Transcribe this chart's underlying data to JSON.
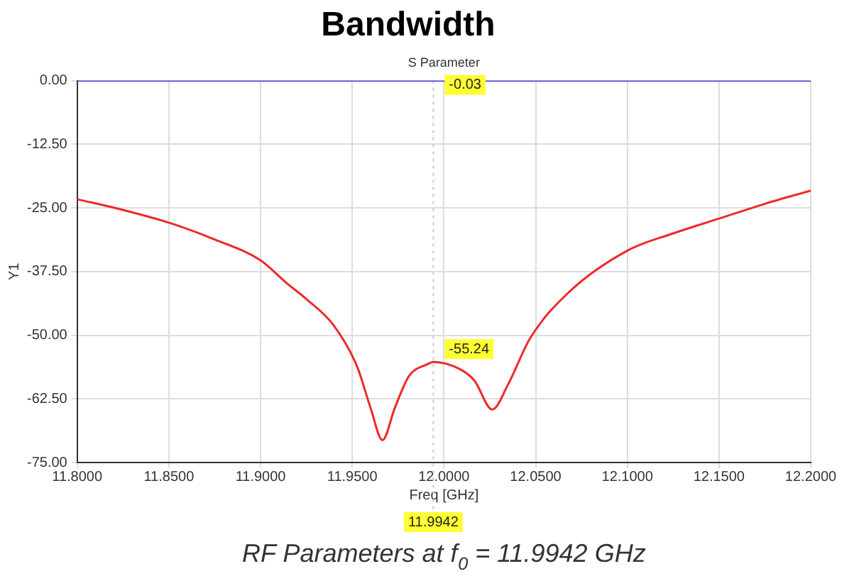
{
  "chart_data": {
    "type": "line",
    "title": "Bandwidth",
    "xlabel": "Freq [GHz]",
    "ylabel": "Y1",
    "annotations": [
      "S Parameter",
      "RF Parameters at f$_{0}$ = 11.9942 GHz",
      {
        "text": "-0.03",
        "x": 11.9942,
        "y": -0.03
      },
      {
        "text": "-55.24",
        "x": 11.9942,
        "y": -55.24
      }
    ],
    "series": [
      {
        "color": "#ee2a2a",
        "x": [
          11.8,
          11.825,
          11.85,
          11.875,
          11.9,
          11.914,
          11.925,
          11.9395,
          11.9526,
          11.96,
          11.9665,
          11.9732,
          11.981,
          11.991,
          11.9942,
          12.0089,
          12.0166,
          12.0264,
          12.0348,
          12.047,
          12.068,
          12.1,
          12.125,
          12.15,
          12.175,
          12.2
        ],
        "values": [
          -23.3,
          -25.4,
          -27.9,
          -31.2,
          -35.3,
          -39.7,
          -42.9,
          -47.9,
          -56.1,
          -64.3,
          -70.6,
          -64.3,
          -58.0,
          -55.7,
          -55.24,
          -56.7,
          -58.9,
          -64.6,
          -59.8,
          -50.6,
          -41.6,
          -33.4,
          -30.0,
          -27.1,
          -24.2,
          -21.6
        ]
      },
      {
        "color": "#5050e0",
        "x": [
          11.8,
          12.2
        ],
        "values": [
          -0.03,
          -0.03
        ]
      }
    ],
    "xlim": [
      11.8,
      12.2
    ],
    "xticks": [
      {
        "value": 11.8,
        "label": "11.8000"
      },
      {
        "value": 11.85,
        "label": "11.8500"
      },
      {
        "value": 11.9,
        "label": "11.9000"
      },
      {
        "value": 11.95,
        "label": "11.9500"
      },
      {
        "value": 12.0,
        "label": "12.0000"
      },
      {
        "value": 12.05,
        "label": "12.0500"
      },
      {
        "value": 12.1,
        "label": "12.1000"
      },
      {
        "value": 12.15,
        "label": "12.1500"
      },
      {
        "value": 12.2,
        "label": "12.2000"
      }
    ],
    "ylim": [
      -75,
      0
    ],
    "yticks": [
      {
        "value": 0,
        "label": "0.00"
      },
      {
        "value": -12.5,
        "label": "-12.50"
      },
      {
        "value": -25,
        "label": "-25.00"
      },
      {
        "value": -37.5,
        "label": "-37.50"
      },
      {
        "value": -50,
        "label": "-50.00"
      },
      {
        "value": -62.5,
        "label": "-62.50"
      },
      {
        "value": -75,
        "label": "-75.00"
      }
    ],
    "ref_lines": [
      {
        "axis": "x",
        "value": 11.9942,
        "label": "11.9942",
        "color": "#c8c8c8",
        "line_style": "dotted"
      }
    ],
    "grid": true,
    "legend": false,
    "marker": "none",
    "line_style": "solid"
  }
}
